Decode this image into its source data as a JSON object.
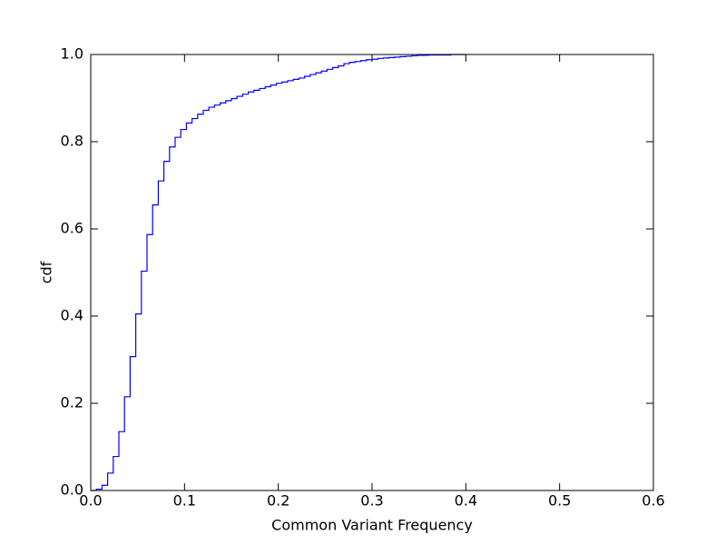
{
  "chart_data": {
    "type": "line",
    "step": "post",
    "xlabel": "Common Variant Frequency",
    "ylabel": "cdf",
    "x": [
      0,
      0.006,
      0.012,
      0.018,
      0.024,
      0.03,
      0.036,
      0.042,
      0.048,
      0.054,
      0.06,
      0.066,
      0.072,
      0.078,
      0.084,
      0.09,
      0.096,
      0.102,
      0.108,
      0.114,
      0.12,
      0.126,
      0.132,
      0.138,
      0.144,
      0.15,
      0.156,
      0.162,
      0.168,
      0.174,
      0.18,
      0.186,
      0.192,
      0.198,
      0.204,
      0.21,
      0.216,
      0.222,
      0.228,
      0.234,
      0.24,
      0.246,
      0.252,
      0.258,
      0.264,
      0.27,
      0.276,
      0.282,
      0.288,
      0.294,
      0.3,
      0.306,
      0.312,
      0.318,
      0.324,
      0.33,
      0.336,
      0.342,
      0.348,
      0.36,
      0.372,
      0.384,
      0.4
    ],
    "series": [
      {
        "color": "#0000ff",
        "values": [
          0,
          0.003,
          0.012,
          0.04,
          0.078,
          0.135,
          0.215,
          0.307,
          0.405,
          0.503,
          0.587,
          0.655,
          0.71,
          0.755,
          0.788,
          0.81,
          0.828,
          0.843,
          0.853,
          0.863,
          0.872,
          0.879,
          0.884,
          0.889,
          0.894,
          0.899,
          0.904,
          0.909,
          0.914,
          0.918,
          0.922,
          0.926,
          0.93,
          0.934,
          0.937,
          0.94,
          0.943,
          0.946,
          0.95,
          0.954,
          0.958,
          0.962,
          0.966,
          0.97,
          0.974,
          0.979,
          0.982,
          0.984,
          0.986,
          0.988,
          0.989,
          0.991,
          0.992,
          0.993,
          0.994,
          0.995,
          0.996,
          0.997,
          0.998,
          0.999,
          0.999,
          1.0,
          1.0
        ]
      }
    ],
    "xlim": [
      0,
      0.6
    ],
    "ylim": [
      0,
      1
    ],
    "xticks": [
      {
        "value": 0,
        "label": "0.0"
      },
      0.1,
      0.2,
      0.3,
      0.4,
      0.5,
      0.6
    ],
    "yticks": [
      {
        "value": 0,
        "label": "0.0"
      },
      0.2,
      0.4,
      0.6,
      0.8,
      {
        "value": 1,
        "label": "1.0"
      }
    ]
  }
}
